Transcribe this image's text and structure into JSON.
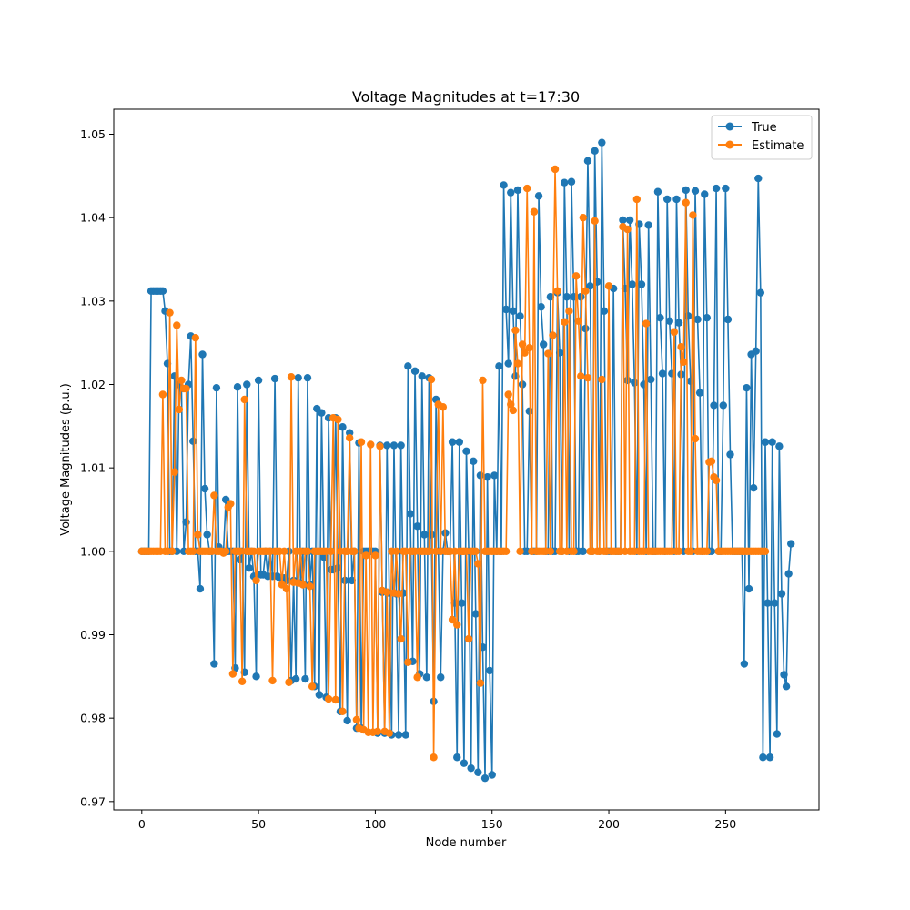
{
  "chart_data": {
    "type": "line",
    "title": "Voltage Magnitudes at t=17:30",
    "xlabel": "Node number",
    "ylabel": "Voltage Magnitudes (p.u.)",
    "xlim": [
      -12,
      290
    ],
    "ylim": [
      0.969,
      1.053
    ],
    "xticks": [
      0,
      50,
      100,
      150,
      200,
      250
    ],
    "yticks": [
      0.97,
      0.98,
      0.99,
      1.0,
      1.01,
      1.02,
      1.03,
      1.04,
      1.05
    ],
    "ytick_labels": [
      "0.97",
      "0.98",
      "0.99",
      "1.00",
      "1.01",
      "1.02",
      "1.03",
      "1.04",
      "1.05"
    ],
    "grid": false,
    "legend": "top-right",
    "marker": "circle",
    "series": [
      {
        "name": "True",
        "color": "#1f77b4",
        "values": [
          1.0,
          1.0,
          1.0,
          1.0,
          1.0312,
          1.0312,
          1.0312,
          1.0312,
          1.0312,
          1.0312,
          1.0288,
          1.0225,
          1.0,
          1.0,
          1.021,
          1.0,
          1.02,
          1.0195,
          1.0,
          1.0035,
          1.02,
          1.0258,
          1.0132,
          1.0,
          1.0,
          0.9955,
          1.0236,
          1.0075,
          1.002,
          1.0,
          1.0,
          0.9865,
          1.0196,
          1.0005,
          1.0,
          1.0,
          1.0062,
          1.0,
          1.0,
          1.0,
          0.986,
          1.0197,
          0.999,
          1.0,
          0.9855,
          1.02,
          0.998,
          1.0,
          0.997,
          0.985,
          1.0205,
          0.9972,
          0.9972,
          1.0,
          0.997,
          1.0,
          0.997,
          1.0207,
          0.997,
          0.9968,
          0.9968,
          0.9968,
          0.9965,
          1.0,
          0.9845,
          0.9965,
          0.9847,
          1.0208,
          0.9962,
          1.0,
          0.9847,
          1.0208,
          0.996,
          1.0,
          0.9838,
          1.0171,
          0.9828,
          1.0166,
          0.9993,
          0.9825,
          1.016,
          0.9978,
          0.9978,
          1.016,
          0.998,
          0.9808,
          1.0149,
          0.9965,
          0.9797,
          1.0142,
          0.9965,
          1.0,
          0.9788,
          1.013,
          0.9788,
          1.0,
          1.0,
          1.0,
          1.0,
          1.0,
          1.0,
          0.9782,
          1.0127,
          0.9951,
          0.9782,
          1.0127,
          0.995,
          0.978,
          1.0127,
          0.9949,
          0.978,
          1.0127,
          0.995,
          0.978,
          1.0222,
          1.0045,
          0.9868,
          1.0216,
          1.003,
          0.9853,
          1.021,
          1.002,
          0.9849,
          1.0208,
          1.002,
          0.982,
          1.0182,
          1.0,
          0.9849,
          1.0,
          1.0022,
          1.0,
          1.0,
          1.0131,
          0.9938,
          0.9753,
          1.0131,
          0.9938,
          0.9746,
          1.012,
          1.0,
          0.974,
          1.0108,
          0.9925,
          0.9735,
          1.0091,
          0.9885,
          0.9728,
          1.0089,
          0.9857,
          0.9732,
          1.0091,
          1.0,
          1.0222,
          1.0,
          1.0439,
          1.029,
          1.0225,
          1.043,
          1.0288,
          1.021,
          1.0433,
          1.0282,
          1.02,
          1.0,
          1.0,
          1.0168,
          1.0,
          1.0,
          1.0,
          1.0426,
          1.0293,
          1.0248,
          1.0,
          1.0,
          1.0305,
          1.0,
          1.0,
          1.031,
          1.0238,
          1.0,
          1.0442,
          1.0305,
          1.0,
          1.0443,
          1.0305,
          1.0,
          1.0,
          1.0305,
          1.0,
          1.0267,
          1.0468,
          1.0318,
          1.0,
          1.048,
          1.0323,
          1.0,
          1.049,
          1.0288,
          1.0,
          1.0,
          1.0,
          1.0315,
          1.0,
          1.0,
          1.0,
          1.0397,
          1.0315,
          1.0205,
          1.0397,
          1.032,
          1.0202,
          1.0,
          1.0392,
          1.032,
          1.02,
          1.0,
          1.0391,
          1.0206,
          1.0,
          1.0,
          1.0431,
          1.028,
          1.0213,
          1.0,
          1.0422,
          1.0276,
          1.0213,
          1.0,
          1.0422,
          1.0274,
          1.0212,
          1.0,
          1.0433,
          1.0282,
          1.0204,
          1.0,
          1.0432,
          1.0278,
          1.019,
          1.0,
          1.0428,
          1.028,
          1.0,
          1.0,
          1.0175,
          1.0435,
          1.0,
          1.0,
          1.0175,
          1.0435,
          1.0278,
          1.0116,
          1.0,
          1.0,
          1.0,
          1.0,
          1.0,
          0.9865,
          1.0196,
          0.9955,
          1.0236,
          1.0076,
          1.024,
          1.0447,
          1.031,
          0.9753,
          1.0131,
          0.9938,
          0.9753,
          1.0131,
          0.9938,
          0.9781,
          1.0126,
          0.9949,
          0.9852,
          0.9838,
          0.9973,
          1.0009
        ]
      },
      {
        "name": "Estimate",
        "color": "#ff7f0e",
        "values": [
          1.0,
          1.0,
          1.0,
          1.0,
          1.0,
          1.0,
          1.0,
          1.0,
          1.0,
          1.0188,
          1.0,
          1.0,
          1.0286,
          1.0,
          1.0095,
          1.0271,
          1.017,
          1.0205,
          1.0195,
          1.0195,
          1.0,
          1.0,
          1.0,
          1.0256,
          1.002,
          1.0,
          1.0,
          1.0,
          1.0,
          1.0,
          1.0,
          1.0067,
          1.0,
          1.0,
          1.0,
          0.9998,
          1.0,
          1.0053,
          1.0057,
          0.9853,
          1.0,
          1.0,
          1.0,
          0.9844,
          1.0182,
          1.0,
          1.0,
          1.0,
          1.0,
          0.9965,
          1.0,
          1.0,
          1.0,
          1.0,
          1.0,
          1.0,
          0.9845,
          1.0,
          1.0,
          1.0,
          0.996,
          1.0,
          0.9955,
          0.9843,
          1.0209,
          0.9963,
          1.0,
          0.9962,
          1.0,
          0.996,
          1.0,
          1.0,
          0.9958,
          0.9838,
          1.0,
          1.0,
          1.0,
          1.0,
          1.0,
          1.0,
          0.9823,
          1.0,
          1.016,
          0.9822,
          1.0158,
          1.0,
          0.9808,
          1.0,
          1.0,
          1.0136,
          1.0,
          1.0,
          0.9798,
          0.9788,
          1.0131,
          0.9786,
          0.9995,
          0.9783,
          1.0128,
          0.9783,
          0.9995,
          0.9784,
          1.0126,
          0.9953,
          0.9784,
          0.9951,
          0.9782,
          1.0,
          0.995,
          1.0,
          0.9949,
          0.9895,
          1.0,
          1.0,
          0.9867,
          1.0,
          1.0,
          1.0,
          0.9849,
          1.0,
          1.0,
          1.0,
          1.0,
          1.0,
          1.0206,
          0.9753,
          1.0,
          1.0176,
          1.0,
          1.0173,
          1.0,
          1.0,
          1.0,
          0.9918,
          1.0,
          0.9912,
          1.0,
          1.0,
          1.0,
          1.0,
          0.9895,
          1.0,
          1.0,
          1.0,
          0.9985,
          0.9842,
          1.0205,
          1.0,
          1.0,
          1.0,
          1.0,
          1.0,
          1.0,
          1.0,
          1.0,
          1.0,
          1.0,
          1.0188,
          1.0176,
          1.0169,
          1.0265,
          1.0225,
          1.0,
          1.0248,
          1.0238,
          1.0435,
          1.0244,
          1.0,
          1.0407,
          1.0,
          1.0,
          1.0,
          1.0,
          1.0,
          1.0237,
          1.0,
          1.0259,
          1.0458,
          1.0312,
          1.0,
          1.0,
          1.0275,
          1.0,
          1.0288,
          1.0,
          1.0,
          1.033,
          1.0276,
          1.021,
          1.04,
          1.0312,
          1.0208,
          1.0,
          1.0,
          1.0396,
          1.0,
          1.0,
          1.0206,
          1.0,
          1.0,
          1.0318,
          1.0,
          1.0,
          1.0,
          1.0,
          1.0,
          1.0389,
          1.0,
          1.0386,
          1.0,
          1.0,
          1.0,
          1.0422,
          1.0,
          1.0,
          1.0,
          1.0273,
          1.0,
          1.0,
          1.0,
          1.0,
          1.0,
          1.0,
          1.0,
          1.0,
          1.0,
          1.0,
          1.0,
          1.0263,
          1.0,
          1.0,
          1.0245,
          1.0227,
          1.0418,
          1.0,
          1.0,
          1.0403,
          1.0135,
          1.0,
          1.0,
          1.0,
          1.0,
          1.0,
          1.0107,
          1.0108,
          1.0089,
          1.0085,
          1.0,
          1.0,
          1.0,
          1.0,
          1.0,
          1.0,
          1.0,
          1.0,
          1.0,
          1.0,
          1.0,
          1.0,
          1.0,
          1.0,
          1.0,
          1.0,
          1.0,
          1.0,
          1.0,
          1.0,
          1.0
        ]
      }
    ]
  }
}
